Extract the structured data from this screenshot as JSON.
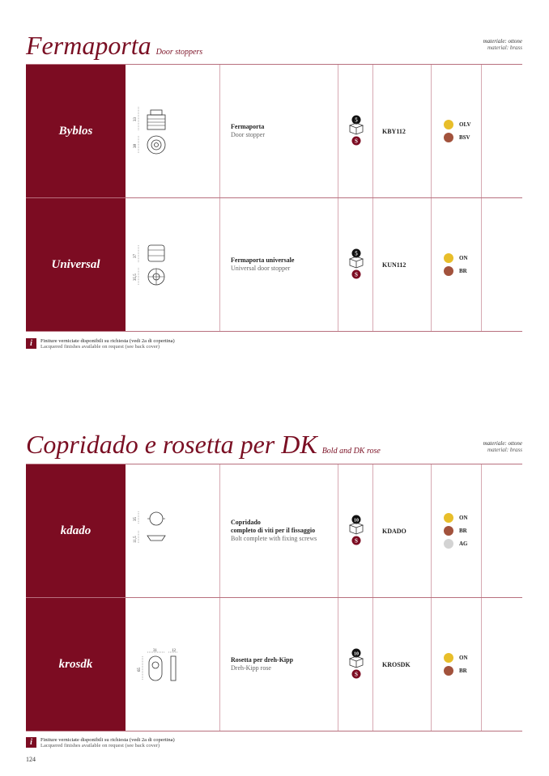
{
  "page_number": "124",
  "colors": {
    "accent": "#7c0c22",
    "rule": "#b8707e",
    "gold": "#e8be2a",
    "bronze": "#a2523c",
    "silver": "#d3d3d3"
  },
  "sections": [
    {
      "title": "Fermaporta",
      "subtitle": "Door stoppers",
      "material_it": "materiale: ottone",
      "material_en": "material: brass",
      "rows": [
        {
          "name": "Byblos",
          "desc_it": "Fermaporta",
          "desc_it2": "",
          "desc_en": "Door stopper",
          "pack_qty": "5",
          "pack_icon": "box-icon",
          "code": "KBY112",
          "dims": [
            "33",
            "38"
          ],
          "finishes": [
            {
              "code": "OLV",
              "color": "#e8be2a"
            },
            {
              "code": "BSV",
              "color": "#a2523c"
            }
          ]
        },
        {
          "name": "Universal",
          "desc_it": "Fermaporta universale",
          "desc_it2": "",
          "desc_en": "Universal door stopper",
          "pack_qty": "5",
          "pack_icon": "box-icon",
          "code": "KUN112",
          "dims": [
            "37",
            "35,5"
          ],
          "finishes": [
            {
              "code": "ON",
              "color": "#e8be2a"
            },
            {
              "code": "BR",
              "color": "#a2523c"
            }
          ]
        }
      ],
      "note_it": "Finiture verniciate disponibili su richiesta (vedi 2a di copertina)",
      "note_en": "Lacquered finishes available on request (see back cover)"
    },
    {
      "title": "Copridado e rosetta per DK",
      "subtitle": "Bold and DK rose",
      "material_it": "materiale: ottone",
      "material_en": "material: brass",
      "rows": [
        {
          "name": "kdado",
          "desc_it": "Copridado",
          "desc_it2": "completo di viti per il fissaggio",
          "desc_en": "Bolt complete with fixing screws",
          "pack_qty": "10",
          "pack_icon": "box-icon",
          "code": "KDADO",
          "dims": [
            "35",
            "11,5"
          ],
          "finishes": [
            {
              "code": "ON",
              "color": "#e8be2a"
            },
            {
              "code": "BR",
              "color": "#a2523c"
            },
            {
              "code": "AG",
              "color": "#d3d3d3"
            }
          ]
        },
        {
          "name": "krosdk",
          "desc_it": "Rosetta per dreh-Kipp",
          "desc_it2": "",
          "desc_en": "Dreh-Kipp rose",
          "pack_qty": "10",
          "pack_icon": "box-icon",
          "code": "KROSDK",
          "dims": [
            "31",
            "12",
            "65"
          ],
          "finishes": [
            {
              "code": "ON",
              "color": "#e8be2a"
            },
            {
              "code": "BR",
              "color": "#a2523c"
            }
          ]
        }
      ],
      "note_it": "Finiture verniciate disponibili su richiesta (vedi 2a di copertina)",
      "note_en": "Lacquered finishes available on request (see back cover)"
    }
  ]
}
